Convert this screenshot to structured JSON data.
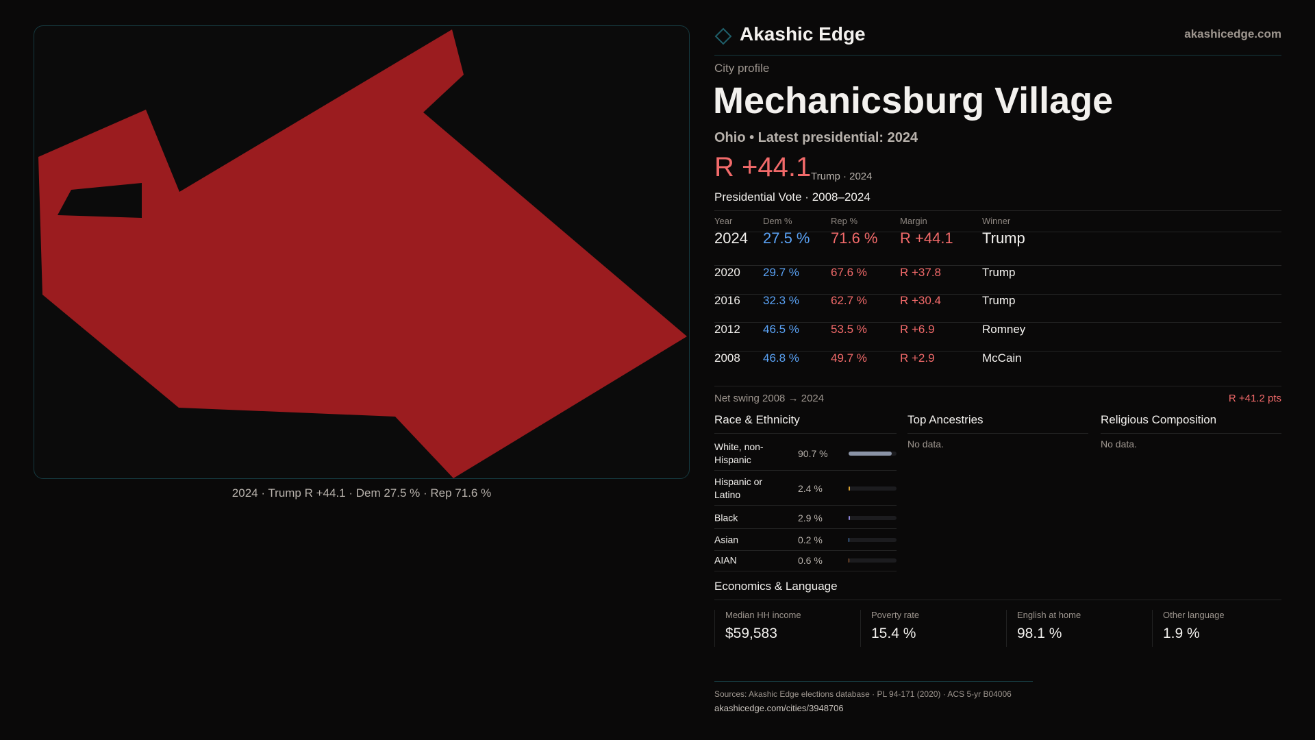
{
  "brand": {
    "name": "Akashic Edge",
    "site": "akashicedge.com"
  },
  "map": {
    "caption": "2024 · Trump R +44.1 · Dem 27.5 % · Rep 71.6 %",
    "fill": "#9b1c1f"
  },
  "profile": {
    "kicker": "City profile",
    "title": "Mechanicsburg Village",
    "subtitle": "Ohio • Latest presidential: 2024",
    "margin": "R +44.1",
    "margin_note": "Trump · 2024"
  },
  "votes": {
    "title": "Presidential Vote · 2008–2024",
    "headers": [
      "Year",
      "Dem %",
      "Rep %",
      "Margin",
      "Winner"
    ],
    "rows": [
      [
        "2024",
        "27.5 %",
        "71.6 %",
        "R +44.1",
        "Trump"
      ],
      [
        "2020",
        "29.7 %",
        "67.6 %",
        "R +37.8",
        "Trump"
      ],
      [
        "2016",
        "32.3 %",
        "62.7 %",
        "R +30.4",
        "Trump"
      ],
      [
        "2012",
        "46.5 %",
        "53.5 %",
        "R +6.9",
        "Romney"
      ],
      [
        "2008",
        "46.8 %",
        "49.7 %",
        "R +2.9",
        "McCain"
      ]
    ],
    "swing_label": "Net swing 2008 → 2024",
    "swing_value": "R +41.2 pts"
  },
  "race": {
    "title": "Race & Ethnicity",
    "items": [
      {
        "label": "White, non-Hispanic",
        "value": "90.7 %",
        "pct": 90.7,
        "color": "#8a93a6"
      },
      {
        "label": "Hispanic or Latino",
        "value": "2.4 %",
        "pct": 2.4,
        "color": "#d9a030"
      },
      {
        "label": "Black",
        "value": "2.9 %",
        "pct": 2.9,
        "color": "#8d84d8"
      },
      {
        "label": "Asian",
        "value": "0.2 %",
        "pct": 0.2,
        "color": "#5aa2f5"
      },
      {
        "label": "AIAN",
        "value": "0.6 %",
        "pct": 0.6,
        "color": "#d07a40"
      }
    ]
  },
  "ancestries": {
    "title": "Top Ancestries",
    "empty": "No data."
  },
  "religion": {
    "title": "Religious Composition",
    "empty": "No data."
  },
  "econ": {
    "title": "Economics & Language",
    "stats": [
      {
        "label": "Median HH income",
        "value": "$59,583"
      },
      {
        "label": "Poverty rate",
        "value": "15.4 %"
      },
      {
        "label": "English at home",
        "value": "98.1 %"
      },
      {
        "label": "Other language",
        "value": "1.9 %"
      }
    ]
  },
  "footer": {
    "sources": "Sources: Akashic Edge elections database · PL 94-171 (2020) · ACS 5-yr B04006",
    "url": "akashicedge.com/cities/3948706"
  }
}
